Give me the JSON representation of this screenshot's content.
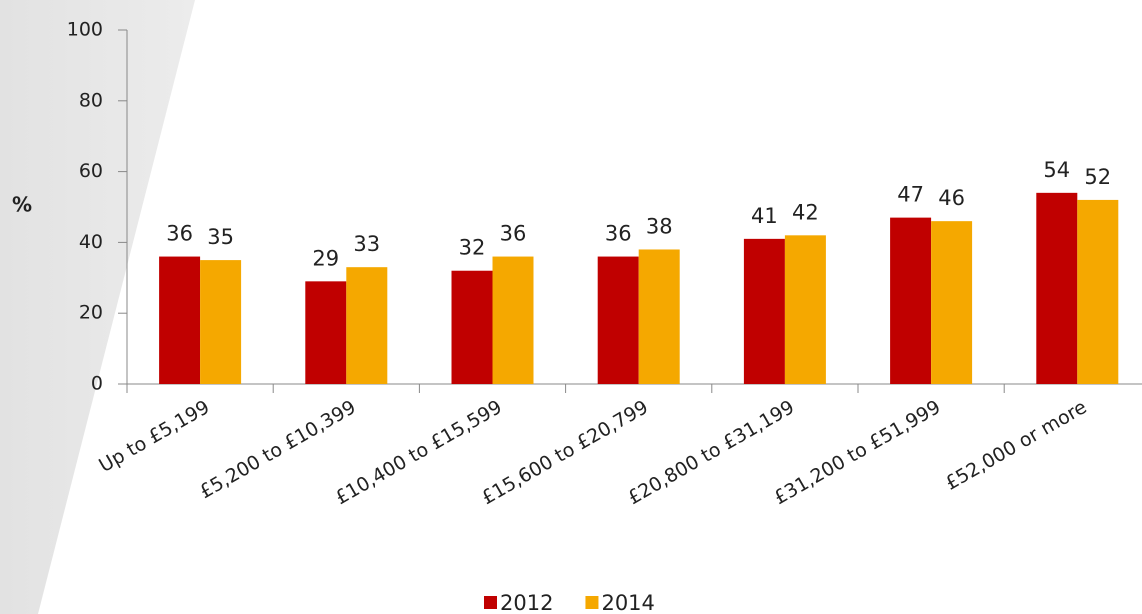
{
  "chart_data": {
    "type": "bar",
    "y_label": "%",
    "categories": [
      "Up to £5,199",
      "£5,200 to £10,399",
      "£10,400 to £15,599",
      "£15,600 to £20,799",
      "£20,800 to £31,199",
      "£31,200 to £51,999",
      "£52,000 or more"
    ],
    "series": [
      {
        "name": "2012",
        "color": "#c00000",
        "values": [
          36,
          29,
          32,
          36,
          41,
          47,
          54
        ]
      },
      {
        "name": "2014",
        "color": "#f5a800",
        "values": [
          35,
          33,
          36,
          38,
          42,
          46,
          52
        ]
      }
    ],
    "ylim": [
      0,
      100
    ],
    "yticks": [
      0,
      20,
      40,
      60,
      80,
      100
    ],
    "grid": false,
    "legend": "bottom"
  }
}
